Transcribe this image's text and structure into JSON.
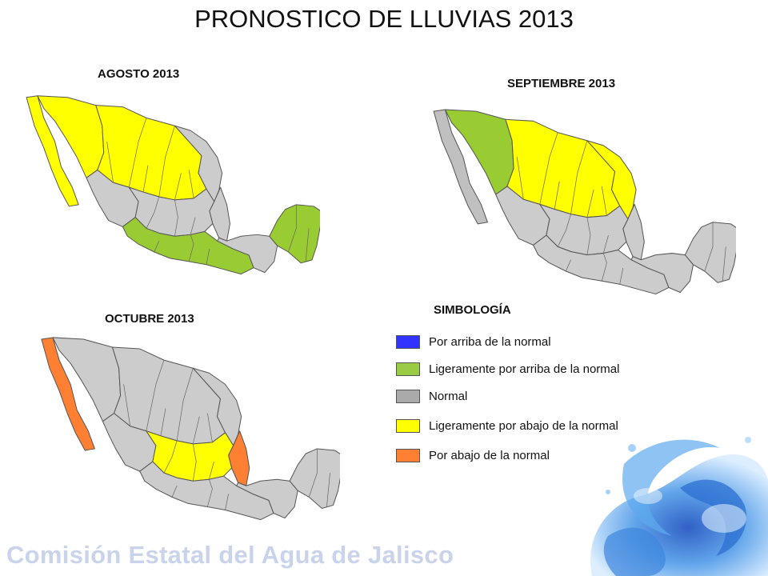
{
  "title": "PRONOSTICO DE LLUVIAS 2013",
  "maps": [
    {
      "label": "AGOSTO 2013",
      "regions": {
        "baja": "#ffff00",
        "sonora": "#ffff00",
        "north_central": "#ffff00",
        "northeast": "#cccccc",
        "tamaulipas": "#cccccc",
        "pacific_west": "#cccccc",
        "center": "#cccccc",
        "south_pacific": "#99cc33",
        "isthmus": "#cccccc",
        "yucatan": "#99cc33"
      }
    },
    {
      "label": "SEPTIEMBRE 2013",
      "regions": {
        "baja": "#c0c0c0",
        "sonora": "#99cc33",
        "north_central": "#ffff00",
        "northeast": "#ffff00",
        "tamaulipas": "#cccccc",
        "pacific_west": "#cccccc",
        "center": "#cccccc",
        "south_pacific": "#cccccc",
        "isthmus": "#cccccc",
        "yucatan": "#cccccc"
      }
    },
    {
      "label": "OCTUBRE 2013",
      "regions": {
        "baja": "#ff7f33",
        "sonora": "#cccccc",
        "north_central": "#cccccc",
        "northeast": "#cccccc",
        "tamaulipas": "#ff7f33",
        "pacific_west": "#cccccc",
        "center": "#ffff00",
        "south_pacific": "#cccccc",
        "isthmus": "#cccccc",
        "yucatan": "#cccccc"
      }
    }
  ],
  "legend": {
    "title": "SIMBOLOGÍA",
    "items": [
      {
        "label": "Por arriba de la normal",
        "color": "#3333ff"
      },
      {
        "label": "Ligeramente por arriba de la normal",
        "color": "#99cc44"
      },
      {
        "label": "Normal",
        "color": "#aaaaaa"
      },
      {
        "label": "Ligeramente por abajo de la normal",
        "color": "#ffff00"
      },
      {
        "label": "Por abajo de la normal",
        "color": "#ff8033"
      }
    ]
  },
  "footer": "Comisión Estatal del Agua de Jalisco"
}
